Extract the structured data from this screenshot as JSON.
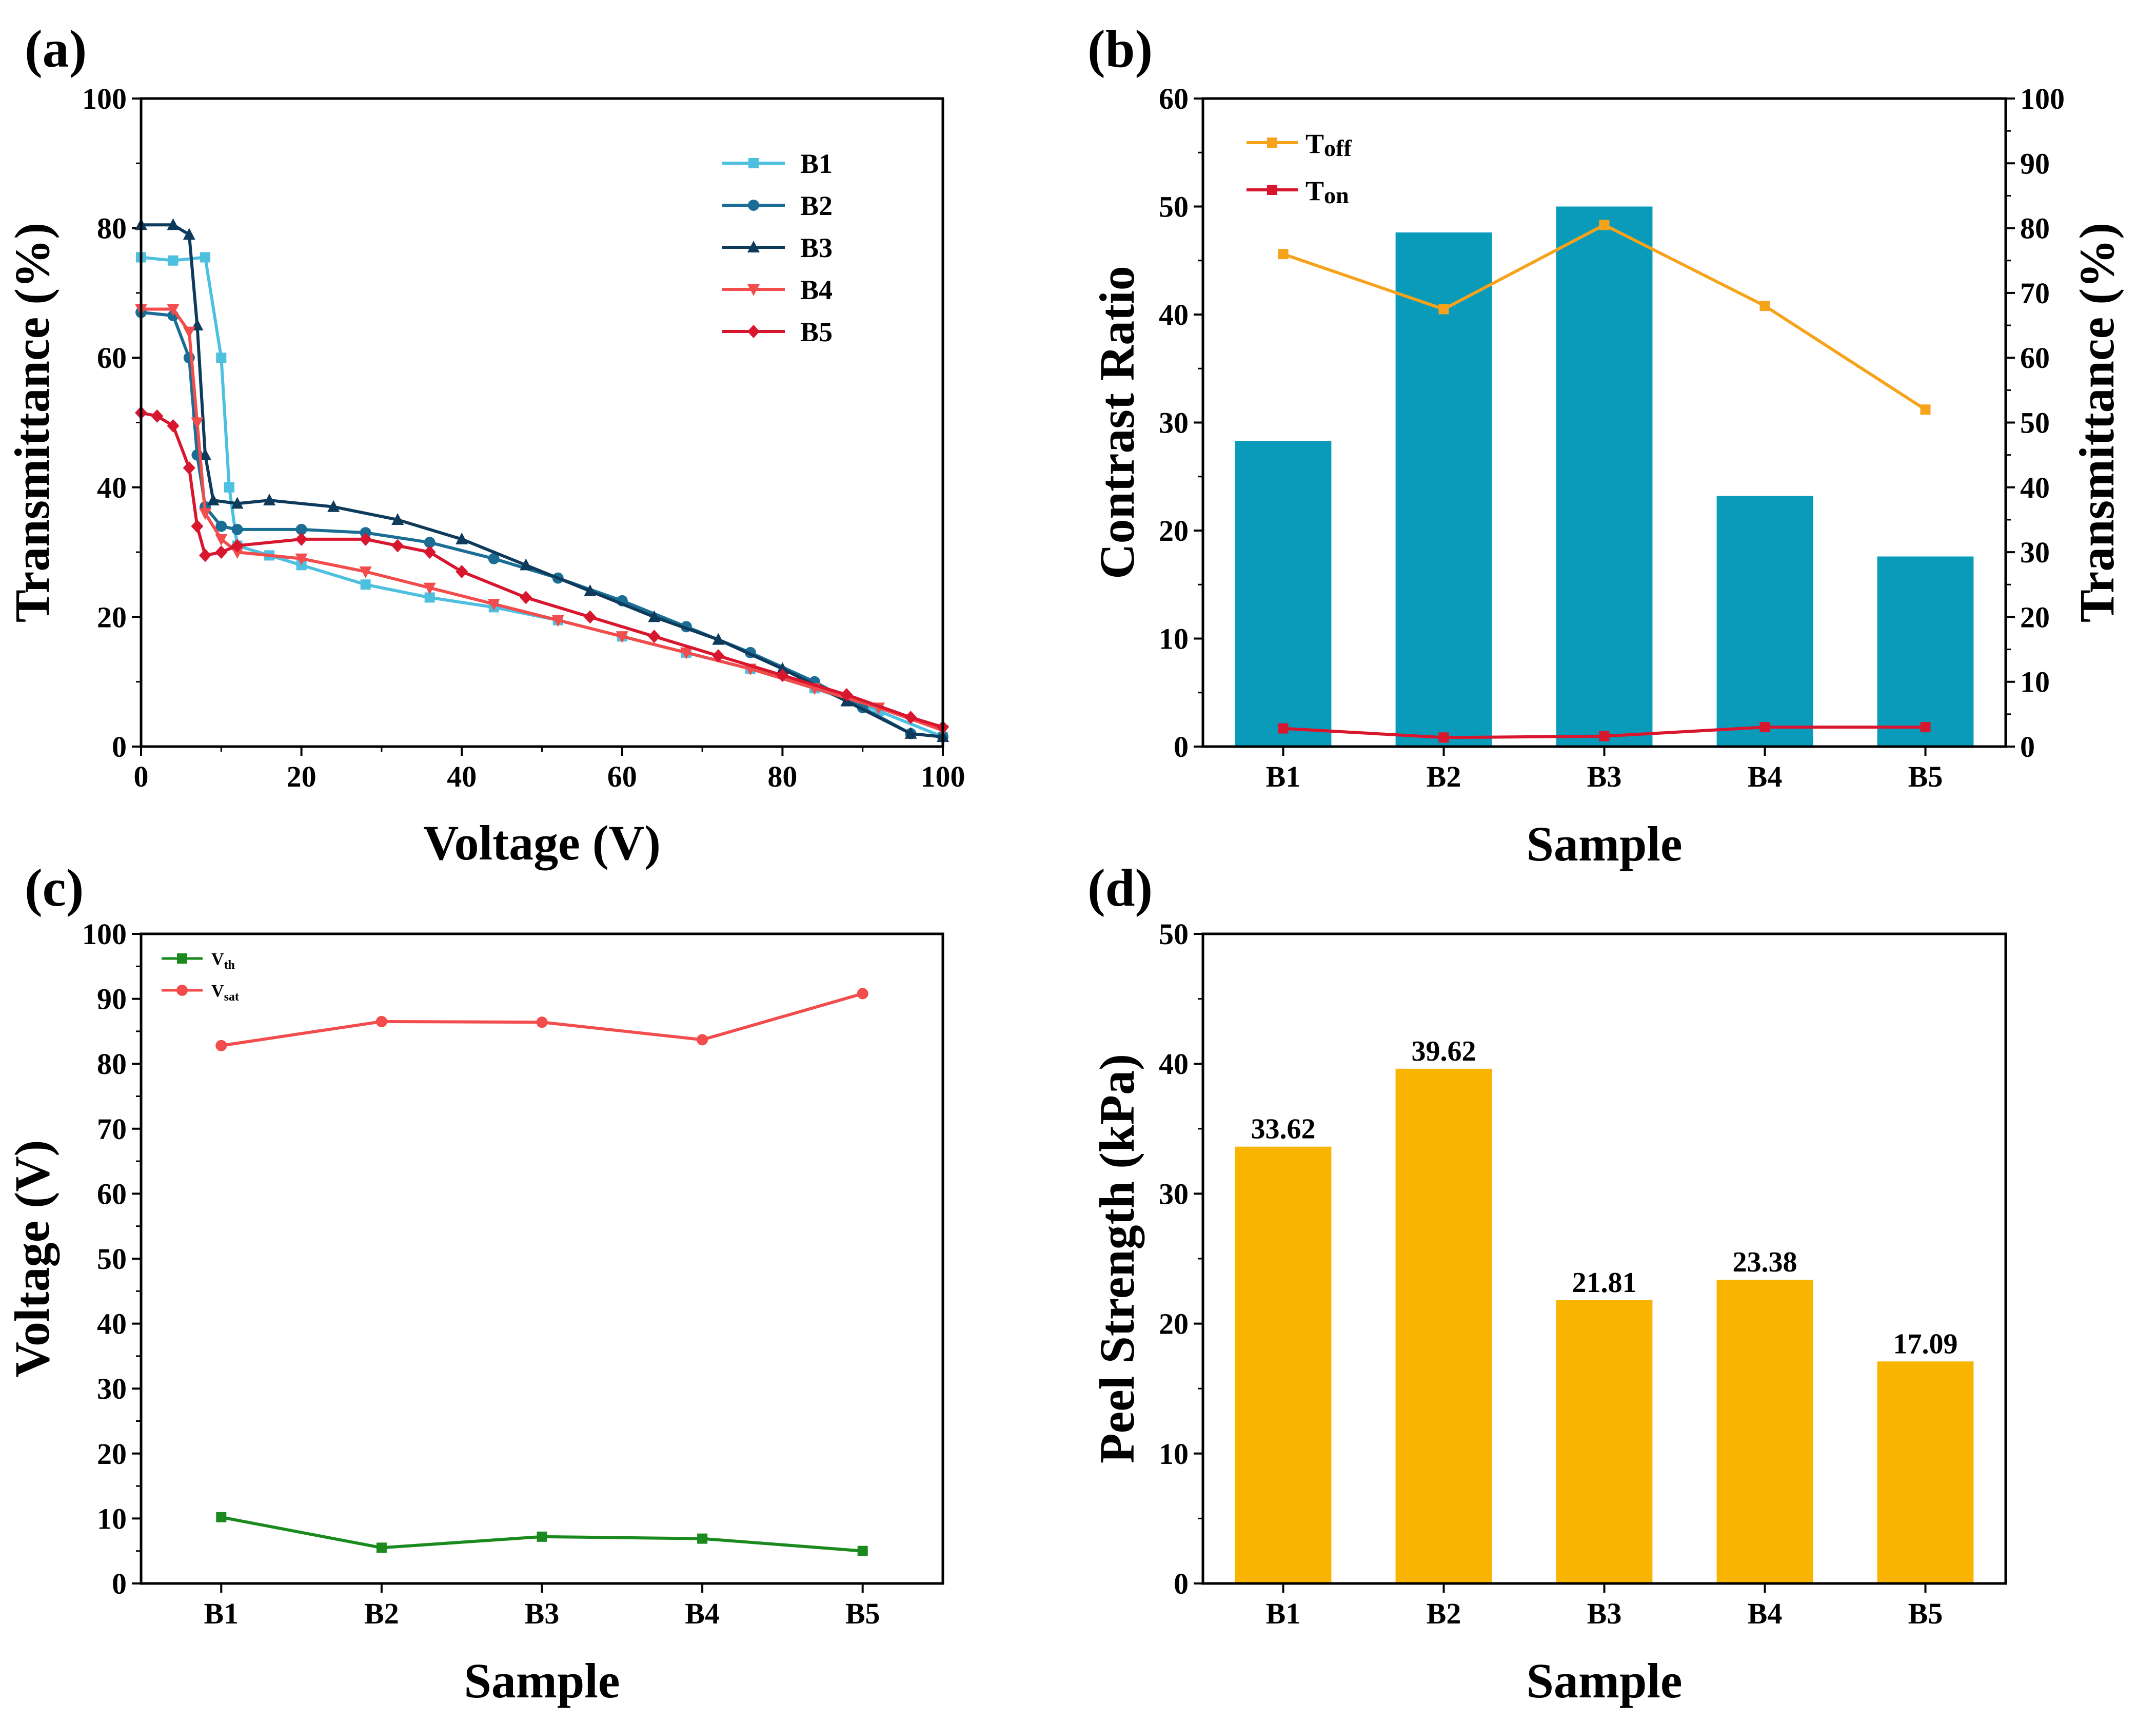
{
  "chart_data": [
    {
      "panel": "(a)",
      "type": "line",
      "xlabel": "Voltage (V)",
      "ylabel": "Transmittance (%)",
      "xlim": [
        0,
        100
      ],
      "ylim": [
        0,
        100
      ],
      "xticks": [
        "0",
        "20",
        "40",
        "60",
        "80",
        "100"
      ],
      "yticks": [
        "0",
        "20",
        "40",
        "60",
        "80",
        "100"
      ],
      "legend_position": "top-right",
      "series": [
        {
          "name": "B1",
          "color": "#4cc0de",
          "marker": "square",
          "x": [
            0,
            4,
            8,
            10,
            11,
            12,
            16,
            20,
            28,
            36,
            44,
            52,
            60,
            68,
            76,
            84,
            92,
            100
          ],
          "y": [
            75.5,
            75,
            75.5,
            60,
            40,
            31,
            29.5,
            28,
            25,
            23,
            21.5,
            19.5,
            17,
            14.5,
            12,
            9,
            5.5,
            1.5
          ]
        },
        {
          "name": "B2",
          "color": "#1a6e96",
          "marker": "circle",
          "x": [
            0,
            4,
            6,
            7,
            8,
            10,
            12,
            20,
            28,
            36,
            44,
            52,
            60,
            68,
            76,
            84,
            90,
            96,
            100
          ],
          "y": [
            67,
            66.5,
            60,
            45,
            37,
            34,
            33.5,
            33.5,
            33,
            31.5,
            29,
            26,
            22.5,
            18.5,
            14.5,
            10,
            6,
            2,
            1.5
          ]
        },
        {
          "name": "B3",
          "color": "#0e3a5c",
          "marker": "triangle",
          "x": [
            0,
            4,
            6,
            7,
            8,
            9,
            12,
            16,
            24,
            32,
            40,
            48,
            56,
            64,
            72,
            80,
            88,
            96,
            100
          ],
          "y": [
            80.5,
            80.5,
            79,
            65,
            45,
            38,
            37.5,
            38,
            37,
            35,
            32,
            28,
            24,
            20,
            16.5,
            12,
            7,
            2,
            1.5
          ]
        },
        {
          "name": "B4",
          "color": "#f24c4c",
          "marker": "inverted-triangle",
          "x": [
            0,
            4,
            6,
            7,
            8,
            10,
            12,
            20,
            28,
            36,
            44,
            52,
            60,
            68,
            76,
            84,
            92,
            100
          ],
          "y": [
            67.5,
            67.5,
            64,
            50,
            36,
            32,
            30,
            29,
            27,
            24.5,
            22,
            19.5,
            17,
            14.5,
            12,
            9,
            6,
            2.5
          ]
        },
        {
          "name": "B5",
          "color": "#d8162e",
          "marker": "diamond",
          "x": [
            0,
            2,
            4,
            6,
            7,
            8,
            10,
            12,
            20,
            28,
            32,
            36,
            40,
            48,
            56,
            64,
            72,
            80,
            88,
            96,
            100
          ],
          "y": [
            51.5,
            51,
            49.5,
            43,
            34,
            29.5,
            30,
            31,
            32,
            32,
            31,
            30,
            27,
            23,
            20,
            17,
            14,
            11,
            8,
            4.5,
            3
          ]
        }
      ]
    },
    {
      "panel": "(b)",
      "type": "bar",
      "xlabel": "Sample",
      "ylabel": "Contrast Ratio",
      "ylabel_right": "Transmittance (%)",
      "categories": [
        "B1",
        "B2",
        "B3",
        "B4",
        "B5"
      ],
      "ylim": [
        0,
        60
      ],
      "ylim_right": [
        0,
        100
      ],
      "yticks": [
        "0",
        "10",
        "20",
        "30",
        "40",
        "50",
        "60"
      ],
      "yticks_right": [
        "0",
        "10",
        "20",
        "30",
        "40",
        "50",
        "60",
        "70",
        "80",
        "90",
        "100"
      ],
      "legend_position": "top-left",
      "bar_series": {
        "name": "Contrast Ratio",
        "color": "#0a9bbb",
        "values": [
          28.3,
          47.6,
          50,
          23.2,
          17.6
        ]
      },
      "line_series": [
        {
          "name": "T",
          "subscript": "off",
          "color": "#f7a21b",
          "axis": "right",
          "values": [
            76,
            67.5,
            80.5,
            68,
            52
          ]
        },
        {
          "name": "T",
          "subscript": "on",
          "color": "#d8162e",
          "axis": "right",
          "values": [
            2.8,
            1.4,
            1.6,
            3.0,
            3.0
          ]
        }
      ]
    },
    {
      "panel": "(c)",
      "type": "line",
      "xlabel": "Sample",
      "ylabel": "Voltage (V)",
      "categories": [
        "B1",
        "B2",
        "B3",
        "B4",
        "B5"
      ],
      "ylim": [
        0,
        100
      ],
      "yticks": [
        "0",
        "10",
        "20",
        "30",
        "40",
        "50",
        "60",
        "70",
        "80",
        "90",
        "100"
      ],
      "legend_position": "top-left",
      "series": [
        {
          "name": "V",
          "subscript": "th",
          "color": "#1a8a1f",
          "values": [
            10.2,
            5.5,
            7.2,
            6.9,
            5.0
          ]
        },
        {
          "name": "V",
          "subscript": "sat",
          "color": "#f24c4c",
          "values": [
            82.8,
            86.5,
            86.4,
            83.7,
            90.8
          ]
        }
      ]
    },
    {
      "panel": "(d)",
      "type": "bar",
      "xlabel": "Sample",
      "ylabel": "Peel Strength (kPa)",
      "categories": [
        "B1",
        "B2",
        "B3",
        "B4",
        "B5"
      ],
      "ylim": [
        0,
        50
      ],
      "yticks": [
        "0",
        "10",
        "20",
        "30",
        "40",
        "50"
      ],
      "color": "#f9b400",
      "values": [
        33.62,
        39.62,
        21.81,
        23.38,
        17.09
      ],
      "data_labels": [
        "33.62",
        "39.62",
        "21.81",
        "23.38",
        "17.09"
      ]
    }
  ]
}
